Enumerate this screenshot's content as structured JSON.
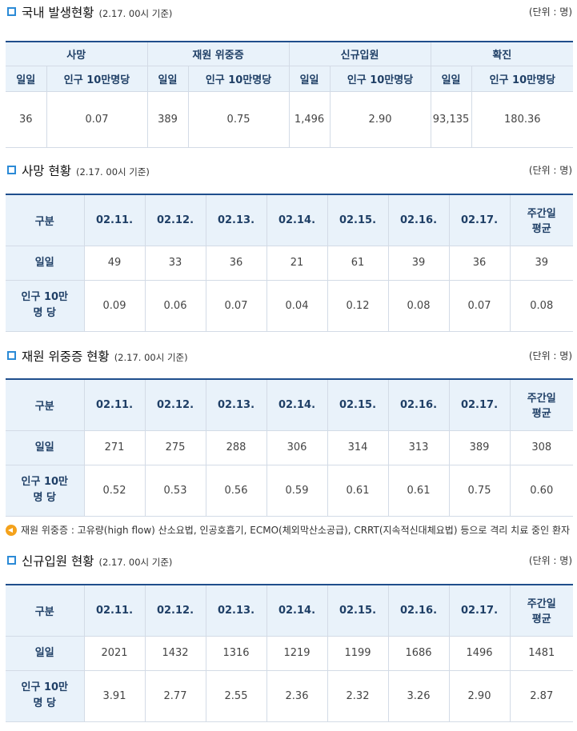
{
  "domestic": {
    "title": "국내 발생현황",
    "subtitle": "(2.17. 00시 기준)",
    "unit": "(단위 : 명)",
    "groups": [
      "사망",
      "재원 위중증",
      "신규입원",
      "확진"
    ],
    "subheaders": [
      "일일",
      "인구 10만명당",
      "일일",
      "인구 10만명당",
      "일일",
      "인구 10만명당",
      "일일",
      "인구 10만명당"
    ],
    "values": [
      "36",
      "0.07",
      "389",
      "0.75",
      "1,496",
      "2.90",
      "93,135",
      "180.36"
    ]
  },
  "deaths": {
    "title": "사망 현황",
    "subtitle": "(2.17. 00시 기준)",
    "unit": "(단위 : 명)",
    "header": [
      "구분",
      "02.11.",
      "02.12.",
      "02.13.",
      "02.14.",
      "02.15.",
      "02.16.",
      "02.17.",
      "주간일\n평균"
    ],
    "rows": [
      {
        "label": "일일",
        "cells": [
          "49",
          "33",
          "36",
          "21",
          "61",
          "39",
          "36",
          "39"
        ]
      },
      {
        "label": "인구 10만\n명 당",
        "cells": [
          "0.09",
          "0.06",
          "0.07",
          "0.04",
          "0.12",
          "0.08",
          "0.07",
          "0.08"
        ]
      }
    ]
  },
  "critical": {
    "title": "재원 위중증 현황",
    "subtitle": "(2.17. 00시 기준)",
    "unit": "(단위 : 명)",
    "header": [
      "구분",
      "02.11.",
      "02.12.",
      "02.13.",
      "02.14.",
      "02.15.",
      "02.16.",
      "02.17.",
      "주간일\n평균"
    ],
    "rows": [
      {
        "label": "일일",
        "cells": [
          "271",
          "275",
          "288",
          "306",
          "314",
          "313",
          "389",
          "308"
        ]
      },
      {
        "label": "인구 10만\n명 당",
        "cells": [
          "0.52",
          "0.53",
          "0.56",
          "0.59",
          "0.61",
          "0.61",
          "0.75",
          "0.60"
        ]
      }
    ],
    "note": "재원 위중증 : 고유량(high flow) 산소요법, 인공호흡기, ECMO(체외막산소공급), CRRT(지속적신대체요법) 등으로 격리 치료 중인 환자"
  },
  "admissions": {
    "title": "신규입원 현황",
    "subtitle": "(2.17. 00시 기준)",
    "unit": "(단위 : 명)",
    "header": [
      "구분",
      "02.11.",
      "02.12.",
      "02.13.",
      "02.14.",
      "02.15.",
      "02.16.",
      "02.17.",
      "주간일\n평균"
    ],
    "rows": [
      {
        "label": "일일",
        "cells": [
          "2021",
          "1432",
          "1316",
          "1219",
          "1199",
          "1686",
          "1496",
          "1481"
        ]
      },
      {
        "label": "인구 10만\n명 당",
        "cells": [
          "3.91",
          "2.77",
          "2.55",
          "2.36",
          "2.32",
          "3.26",
          "2.90",
          "2.87"
        ]
      }
    ]
  },
  "colors": {
    "accent": "#2b8ad6",
    "header_bg": "#e9f2fa",
    "top_border": "#1f4e8c",
    "speaker": "#f4a21c"
  }
}
